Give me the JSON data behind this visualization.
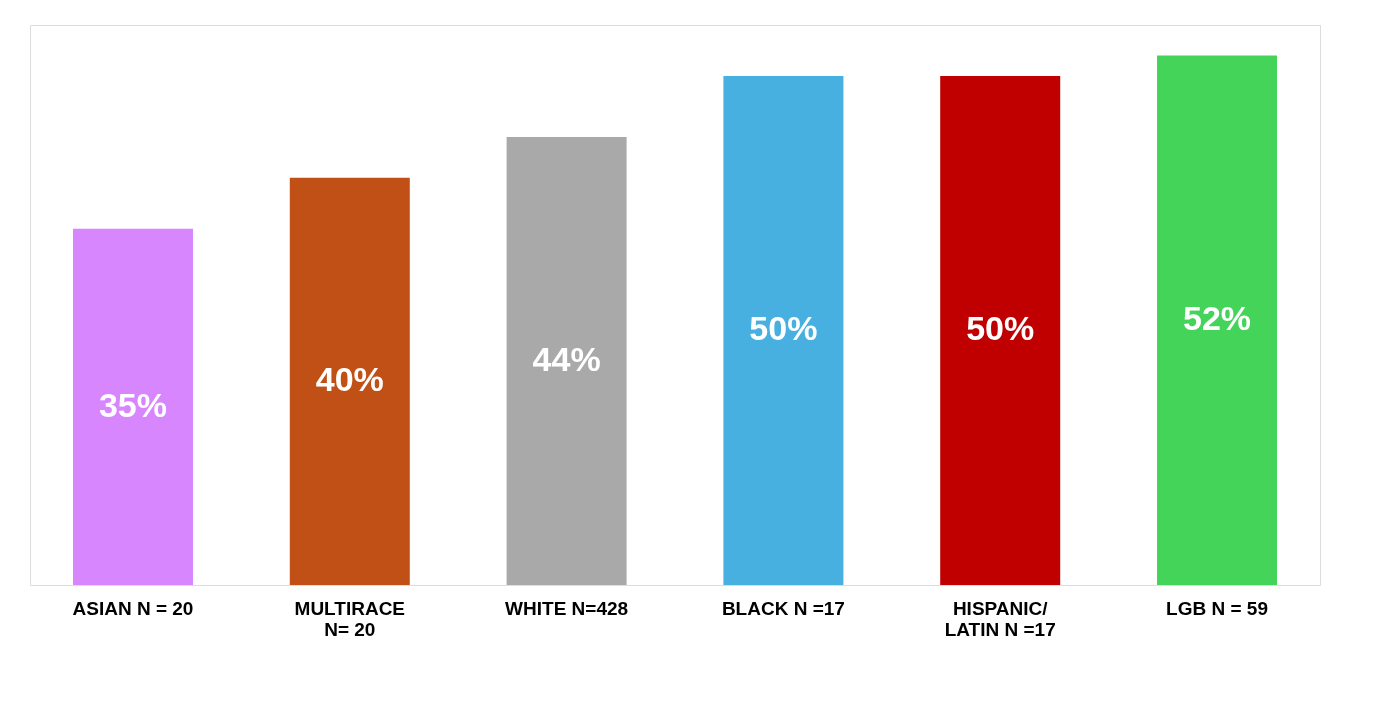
{
  "chart_data": {
    "type": "bar",
    "categories": [
      "ASIAN N = 20",
      "MULTIRACE\nN= 20",
      "WHITE N=428",
      "BLACK N =17",
      "HISPANIC/\nLATIN N =17",
      "LGB N = 59"
    ],
    "values": [
      35,
      40,
      44,
      50,
      50,
      52
    ],
    "colors": [
      "#d786fe",
      "#c05016",
      "#a9a9a9",
      "#47b0e0",
      "#c00000",
      "#45d45a"
    ],
    "value_labels": [
      "35%",
      "40%",
      "44%",
      "50%",
      "50%",
      "52%"
    ],
    "grid": false,
    "legend": false
  }
}
